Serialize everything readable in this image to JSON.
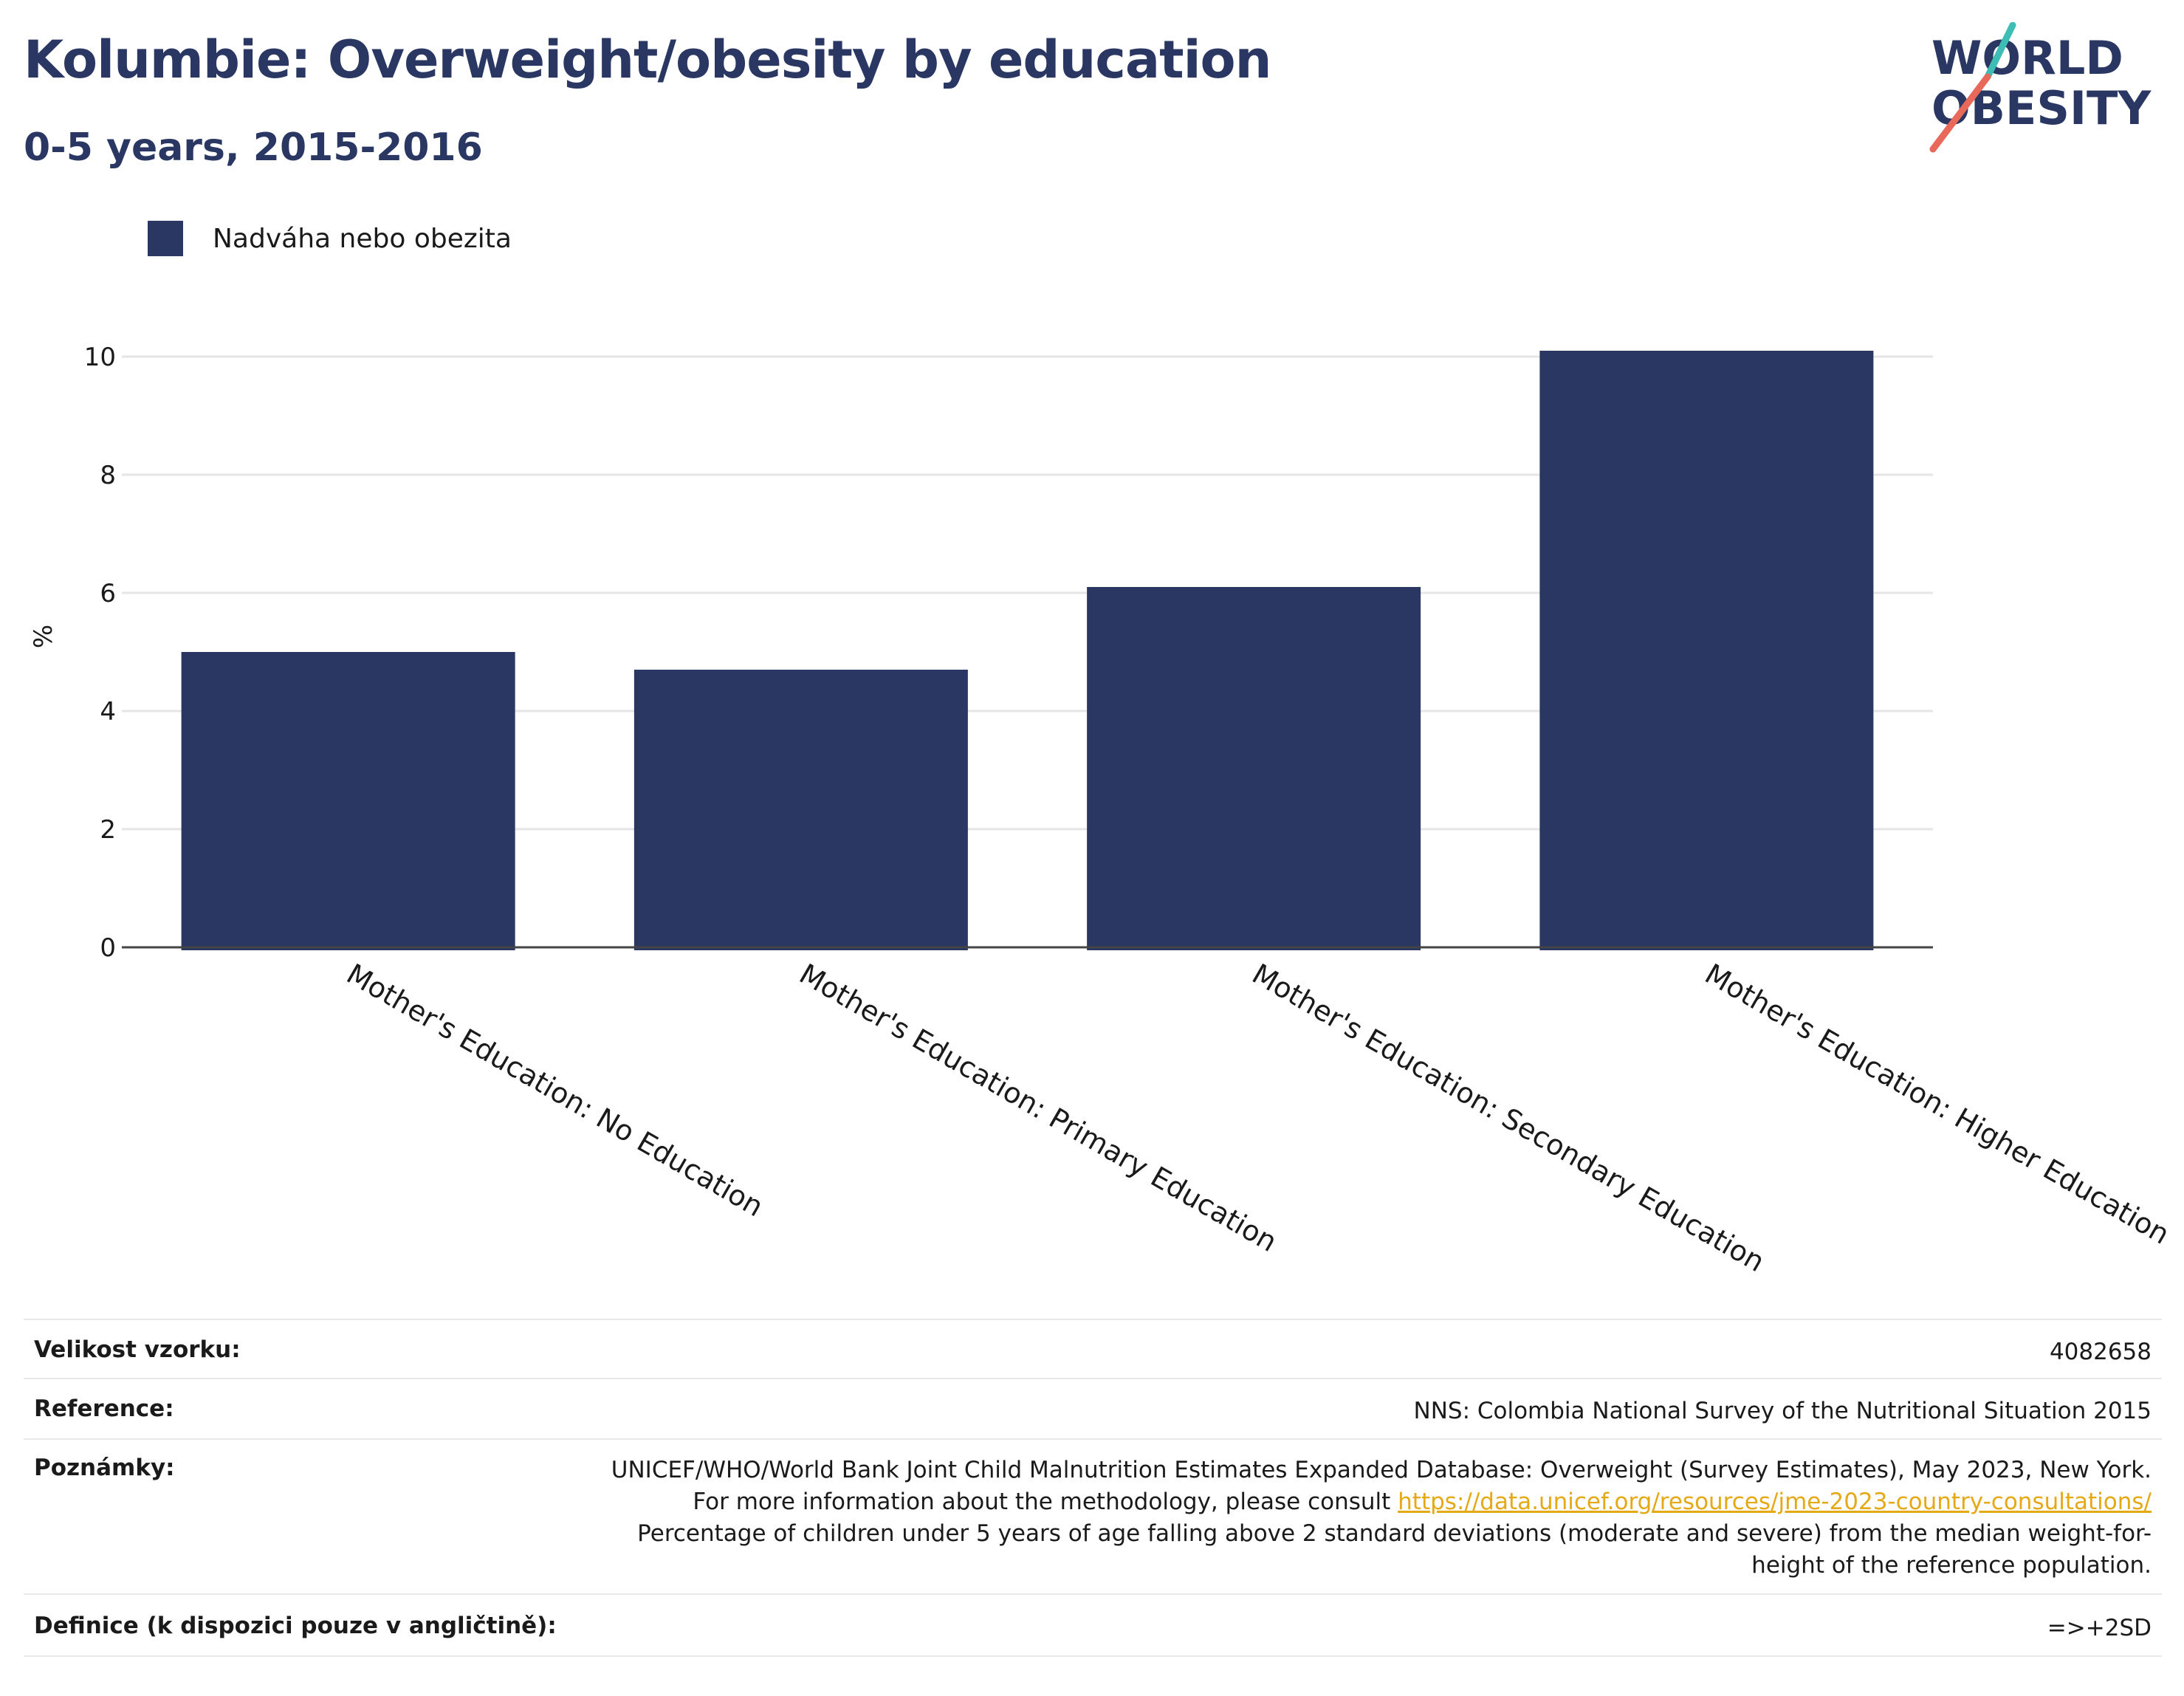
{
  "header": {
    "title": "Kolumbie: Overweight/obesity by education",
    "subtitle": "0-5 years, 2015-2016"
  },
  "logo": {
    "line1": "WORLD",
    "line2": "OBESITY",
    "accent_teal": "#3dbdb4",
    "accent_red": "#e8685a",
    "text_color": "#2a3763"
  },
  "legend": {
    "label": "Nadváha nebo obezita",
    "color": "#2a3763"
  },
  "chart_data": {
    "type": "bar",
    "categories": [
      "Mother's Education: No Education",
      "Mother's Education: Primary Education",
      "Mother's Education: Secondary Education",
      "Mother's Education: Higher Education"
    ],
    "series": [
      {
        "name": "Nadváha nebo obezita",
        "values": [
          5.0,
          4.7,
          6.1,
          10.1
        ],
        "color": "#2a3763"
      }
    ],
    "ylabel": "%",
    "xlabel": "",
    "ylim": [
      0,
      11
    ],
    "yticks": [
      0,
      2,
      4,
      6,
      8,
      10
    ],
    "grid": true,
    "legend_position": "top-left"
  },
  "meta": {
    "sample_size_label": "Velikost vzorku:",
    "sample_size_value": "4082658",
    "reference_label": "Reference:",
    "reference_value": "NNS: Colombia National Survey of the Nutritional Situation 2015",
    "notes_label": "Poznámky:",
    "notes_text1": "UNICEF/WHO/World Bank Joint Child Malnutrition Estimates Expanded Database: Overweight (Survey Estimates), May 2023, New York. For more information about the methodology, please consult ",
    "notes_link": "https://data.unicef.org/resources/jme-2023-country-consultations/",
    "notes_text2": " Percentage of children under 5 years of age falling above 2 standard deviations (moderate and severe) from the median weight-for-height of the reference population.",
    "definition_label": "Definice (k dispozici pouze v angličtině):",
    "definition_value": "=>+2SD"
  }
}
